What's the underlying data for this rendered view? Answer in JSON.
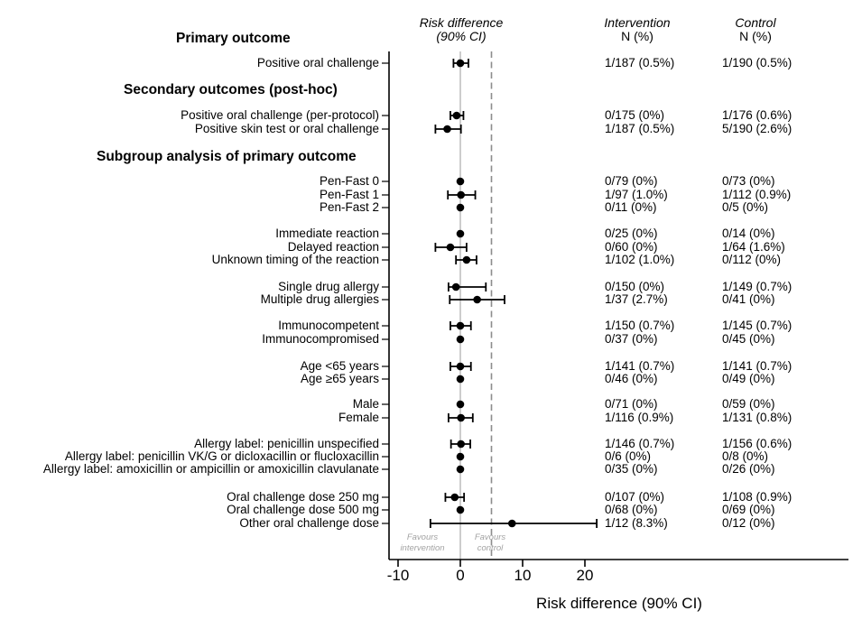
{
  "columns": {
    "risk": {
      "line1": "Risk difference",
      "line2": "(90% CI)"
    },
    "intervention": {
      "line1": "Intervention",
      "line2": "N (%)"
    },
    "control": {
      "line1": "Control",
      "line2": "N (%)"
    }
  },
  "favours": {
    "left_line1": "Favours",
    "left_line2": "intervention",
    "right_line1": "Favours",
    "right_line2": "control"
  },
  "colors": {
    "marker": "#000000",
    "axis": "#000000",
    "zero_line": "#b2b2b2",
    "margin_line": "#8c8c8c",
    "favours_text": "#a3a3a3"
  },
  "chart_data": {
    "type": "forest",
    "xlabel": "Risk difference (90% CI)",
    "x_ticks": [
      -10,
      0,
      10,
      20
    ],
    "xlim": [
      -11.5,
      62
    ],
    "reference_line": 0,
    "noninferiority_line": 5,
    "grid": false,
    "items": [
      {
        "kind": "section",
        "label": "Primary outcome"
      },
      {
        "kind": "row",
        "label": "Positive oral challenge",
        "intervention": "1/187 (0.5%)",
        "control": "1/190 (0.5%)",
        "rd": 0.0,
        "ci_low": -1.1,
        "ci_high": 1.3
      },
      {
        "kind": "section",
        "label": "Secondary outcomes (post-hoc)"
      },
      {
        "kind": "row",
        "label": "Positive oral challenge (per-protocol)",
        "intervention": "0/175 (0%)",
        "control": "1/176 (0.6%)",
        "rd": -0.6,
        "ci_low": -1.6,
        "ci_high": 0.5
      },
      {
        "kind": "row",
        "label": "Positive skin test or oral challenge",
        "intervention": "1/187 (0.5%)",
        "control": "5/190 (2.6%)",
        "rd": -2.1,
        "ci_low": -4.0,
        "ci_high": 0.1
      },
      {
        "kind": "section",
        "label": "Subgroup analysis of primary outcome"
      },
      {
        "kind": "row",
        "label": "Pen-Fast 0",
        "intervention": "0/79 (0%)",
        "control": "0/73 (0%)",
        "rd": 0.0,
        "ci_low": null,
        "ci_high": null
      },
      {
        "kind": "row",
        "label": "Pen-Fast 1",
        "intervention": "1/97 (1.0%)",
        "control": "1/112 (0.9%)",
        "rd": 0.1,
        "ci_low": -2.0,
        "ci_high": 2.4
      },
      {
        "kind": "row",
        "label": "Pen-Fast 2",
        "intervention": "0/11 (0%)",
        "control": "0/5 (0%)",
        "rd": 0.0,
        "ci_low": null,
        "ci_high": null
      },
      {
        "kind": "row",
        "label": "Immediate reaction",
        "intervention": "0/25 (0%)",
        "control": "0/14 (0%)",
        "rd": 0.0,
        "ci_low": null,
        "ci_high": null
      },
      {
        "kind": "row",
        "label": "Delayed reaction",
        "intervention": "0/60 (0%)",
        "control": "1/64 (1.6%)",
        "rd": -1.6,
        "ci_low": -4.0,
        "ci_high": 1.0
      },
      {
        "kind": "row",
        "label": "Unknown timing of the reaction",
        "intervention": "1/102 (1.0%)",
        "control": "0/112 (0%)",
        "rd": 1.0,
        "ci_low": -0.7,
        "ci_high": 2.6
      },
      {
        "kind": "row",
        "label": "Single drug allergy",
        "intervention": "0/150 (0%)",
        "control": "1/149 (0.7%)",
        "rd": -0.7,
        "ci_low": -1.9,
        "ci_high": 4.1
      },
      {
        "kind": "row",
        "label": "Multiple drug allergies",
        "intervention": "1/37 (2.7%)",
        "control": "0/41 (0%)",
        "rd": 2.7,
        "ci_low": -1.7,
        "ci_high": 7.1
      },
      {
        "kind": "row",
        "label": "Immunocompetent",
        "intervention": "1/150 (0.7%)",
        "control": "1/145 (0.7%)",
        "rd": 0.0,
        "ci_low": -1.6,
        "ci_high": 1.7
      },
      {
        "kind": "row",
        "label": "Immunocompromised",
        "intervention": "0/37 (0%)",
        "control": "0/45 (0%)",
        "rd": 0.0,
        "ci_low": null,
        "ci_high": null
      },
      {
        "kind": "row",
        "label": "Age <65 years",
        "intervention": "1/141 (0.7%)",
        "control": "1/141 (0.7%)",
        "rd": 0.0,
        "ci_low": -1.6,
        "ci_high": 1.7
      },
      {
        "kind": "row",
        "label": "Age ≥65 years",
        "intervention": "0/46 (0%)",
        "control": "0/49 (0%)",
        "rd": 0.0,
        "ci_low": null,
        "ci_high": null
      },
      {
        "kind": "row",
        "label": "Male",
        "intervention": "0/71 (0%)",
        "control": "0/59 (0%)",
        "rd": 0.0,
        "ci_low": null,
        "ci_high": null
      },
      {
        "kind": "row",
        "label": "Female",
        "intervention": "1/116 (0.9%)",
        "control": "1/131 (0.8%)",
        "rd": 0.1,
        "ci_low": -1.9,
        "ci_high": 2.0
      },
      {
        "kind": "row",
        "label": "Allergy label: penicillin unspecified",
        "intervention": "1/146 (0.7%)",
        "control": "1/156 (0.6%)",
        "rd": 0.1,
        "ci_low": -1.5,
        "ci_high": 1.6
      },
      {
        "kind": "row",
        "label": "Allergy label: penicillin VK/G or dicloxacillin or flucloxacillin",
        "intervention": "0/6 (0%)",
        "control": "0/8 (0%)",
        "rd": 0.0,
        "ci_low": null,
        "ci_high": null
      },
      {
        "kind": "row",
        "label": "Allergy label: amoxicillin or ampicillin or amoxicillin clavulanate",
        "intervention": "0/35 (0%)",
        "control": "0/26 (0%)",
        "rd": 0.0,
        "ci_low": null,
        "ci_high": null
      },
      {
        "kind": "row",
        "label": "Oral challenge dose 250 mg",
        "intervention": "0/107 (0%)",
        "control": "1/108 (0.9%)",
        "rd": -0.9,
        "ci_low": -2.4,
        "ci_high": 0.6
      },
      {
        "kind": "row",
        "label": "Oral challenge dose 500 mg",
        "intervention": "0/68 (0%)",
        "control": "0/69 (0%)",
        "rd": 0.0,
        "ci_low": null,
        "ci_high": null
      },
      {
        "kind": "row",
        "label": "Other oral challenge dose",
        "intervention": "1/12 (8.3%)",
        "control": "0/12 (0%)",
        "rd": 8.3,
        "ci_low": -4.8,
        "ci_high": 21.9
      }
    ]
  }
}
